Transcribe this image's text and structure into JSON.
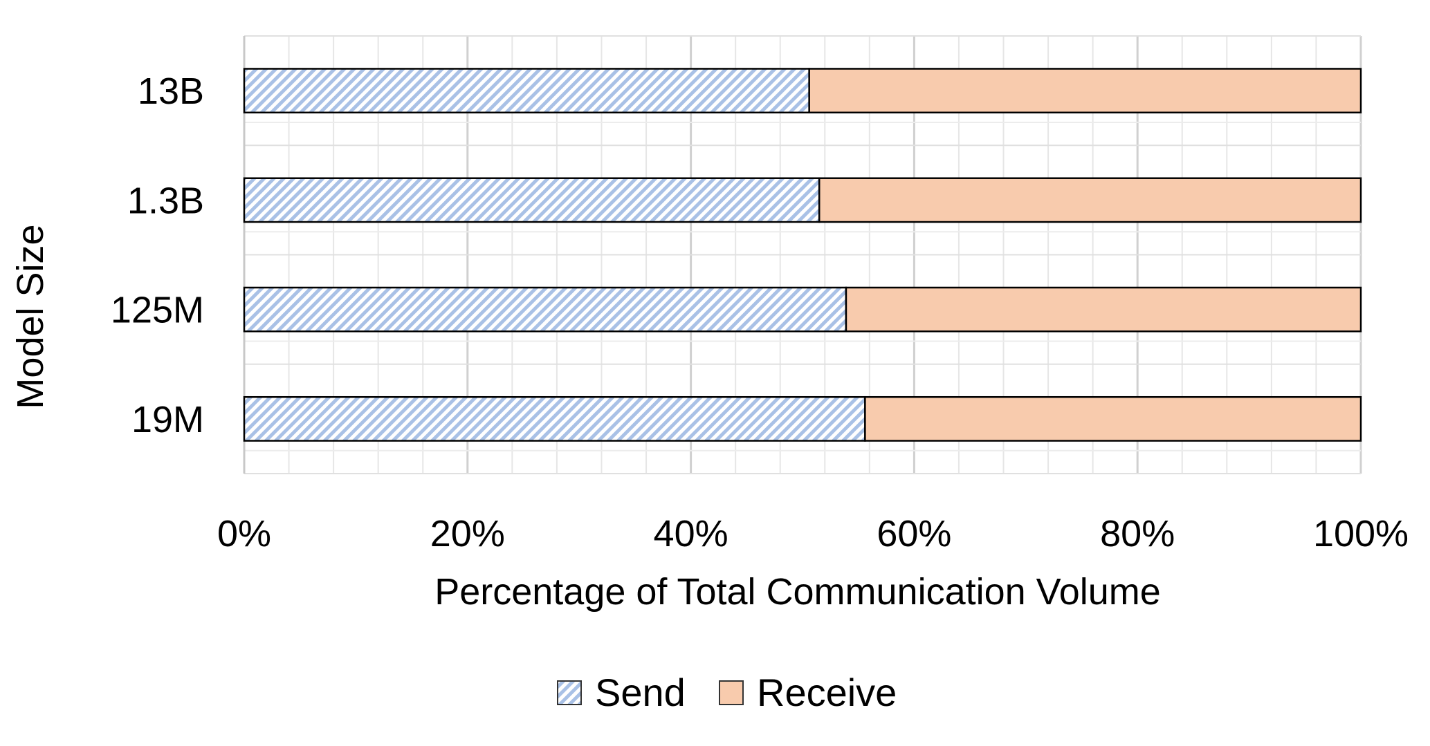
{
  "chart_data": {
    "type": "bar",
    "orientation": "horizontal",
    "stacked": true,
    "normalized": true,
    "title": "",
    "xlabel": "Percentage of Total Communication Volume",
    "ylabel": "Model Size",
    "categories": [
      "13B",
      "1.3B",
      "125M",
      "19M"
    ],
    "series": [
      {
        "name": "Send",
        "values": [
          50.6,
          51.5,
          53.9,
          55.6
        ],
        "color": "#b4c7e7",
        "pattern": "diagonal-hatch"
      },
      {
        "name": "Receive",
        "values": [
          49.4,
          48.5,
          46.1,
          44.4
        ],
        "color": "#f8cbad"
      }
    ],
    "xlim": [
      0,
      100
    ],
    "xticks": [
      "0%",
      "20%",
      "40%",
      "60%",
      "80%",
      "100%"
    ],
    "grid": true,
    "legend_position": "bottom"
  }
}
